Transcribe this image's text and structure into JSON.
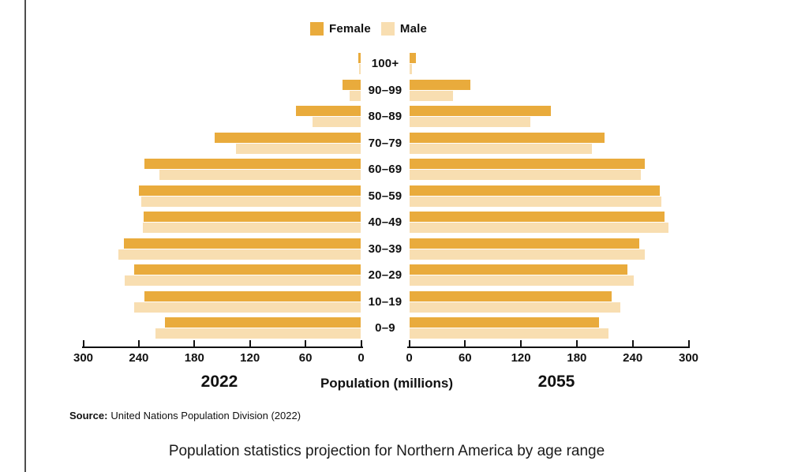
{
  "page": {
    "caption": "Population statistics projection for Northern America by age range",
    "source_label": "Source:",
    "source_text": "United Nations Population Division (2022)"
  },
  "legend": {
    "female_label": "Female",
    "male_label": "Male"
  },
  "colors": {
    "female": "#E9AB3C",
    "male": "#F8DEB1",
    "axis": "#111111",
    "rule": "#4d4d4d"
  },
  "axis": {
    "label": "Population (millions)",
    "left_year": "2022",
    "right_year": "2055",
    "ticks": [
      0,
      60,
      120,
      180,
      240,
      300
    ],
    "max": 300
  },
  "chart_data": {
    "type": "bar",
    "subtype": "population-pyramid-comparison",
    "title": "Population statistics projection for Northern America by age range",
    "unit": "millions",
    "xlim": [
      0,
      300
    ],
    "grid": false,
    "legend_position": "top-center",
    "categories": [
      "100+",
      "90–99",
      "80–89",
      "70–79",
      "60–69",
      "50–59",
      "40–49",
      "30–39",
      "20–29",
      "10–19",
      "0–9"
    ],
    "panels": [
      {
        "year": "2022",
        "side": "left",
        "series": [
          {
            "name": "Female",
            "values": [
              3,
              20,
              70,
              158,
              234,
              240,
              235,
              256,
              245,
              234,
              212
            ]
          },
          {
            "name": "Male",
            "values": [
              2,
              12,
              52,
              135,
              218,
              237,
              236,
              262,
              255,
              245,
              222
            ]
          }
        ]
      },
      {
        "year": "2055",
        "side": "right",
        "series": [
          {
            "name": "Female",
            "values": [
              7,
              66,
              152,
              210,
              253,
              269,
              274,
              247,
              234,
              217,
              204
            ]
          },
          {
            "name": "Male",
            "values": [
              3,
              47,
              130,
              196,
              249,
              271,
              278,
              253,
              241,
              227,
              214
            ]
          }
        ]
      }
    ]
  }
}
